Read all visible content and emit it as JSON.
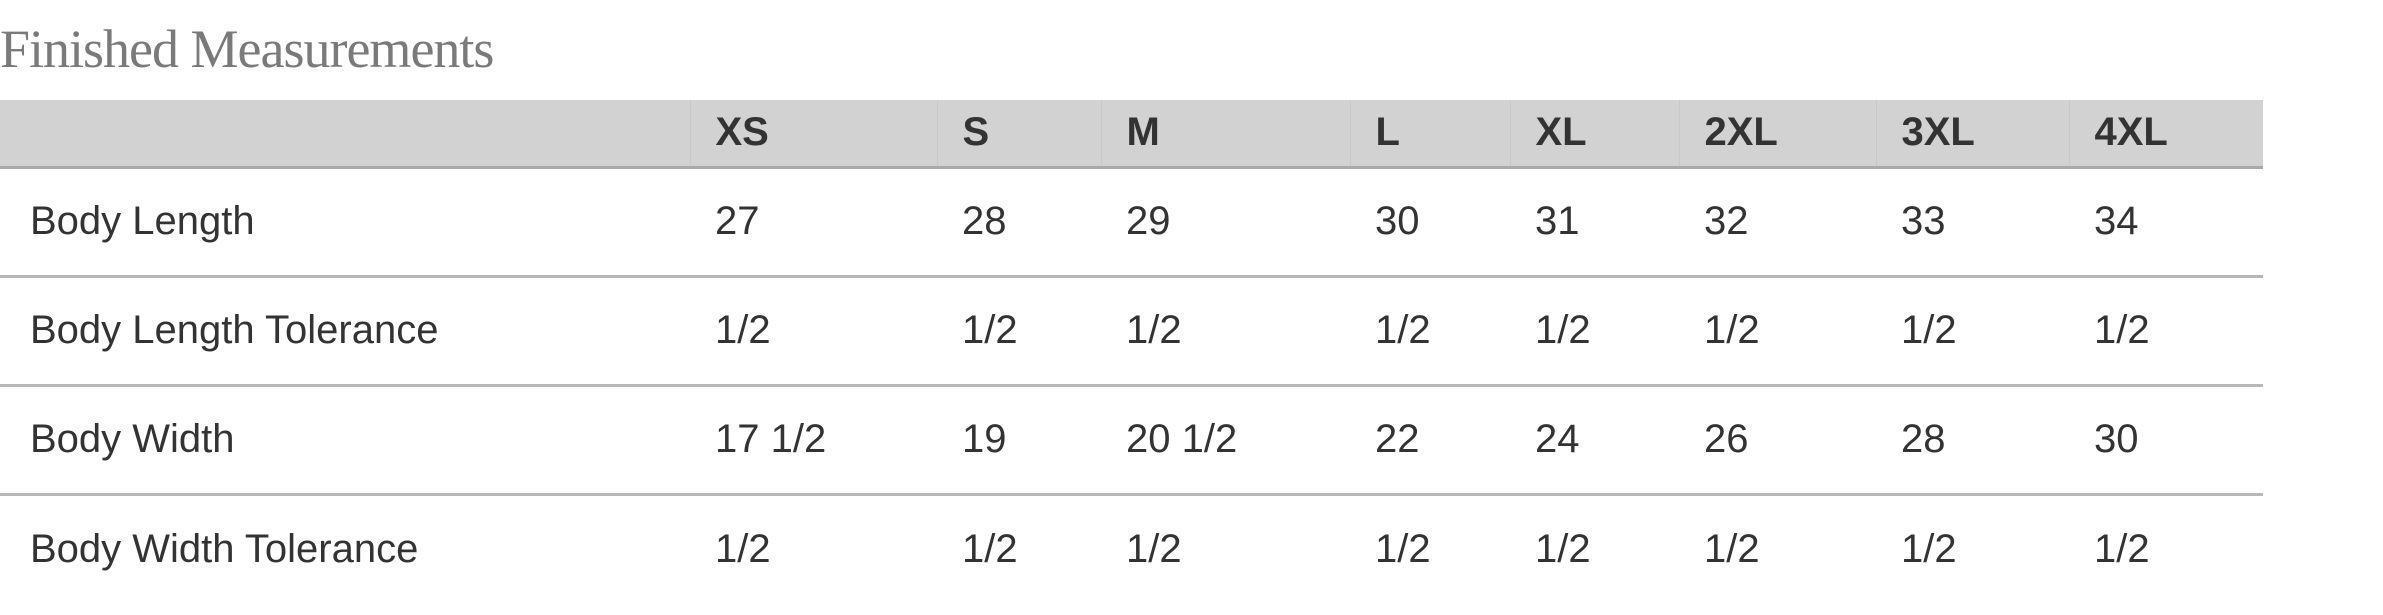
{
  "title": "Finished Measurements",
  "table": {
    "header": [
      "",
      "XS",
      "S",
      "M",
      "L",
      "XL",
      "2XL",
      "3XL",
      "4XL"
    ],
    "rows": [
      {
        "label": "Body Length",
        "values": [
          "27",
          "28",
          "29",
          "30",
          "31",
          "32",
          "33",
          "34"
        ]
      },
      {
        "label": "Body Length Tolerance",
        "values": [
          "1/2",
          "1/2",
          "1/2",
          "1/2",
          "1/2",
          "1/2",
          "1/2",
          "1/2"
        ]
      },
      {
        "label": "Body Width",
        "values": [
          "17 1/2",
          "19",
          "20 1/2",
          "22",
          "24",
          "26",
          "28",
          "30"
        ]
      },
      {
        "label": "Body Width Tolerance",
        "values": [
          "1/2",
          "1/2",
          "1/2",
          "1/2",
          "1/2",
          "1/2",
          "1/2",
          "1/2"
        ]
      }
    ]
  }
}
